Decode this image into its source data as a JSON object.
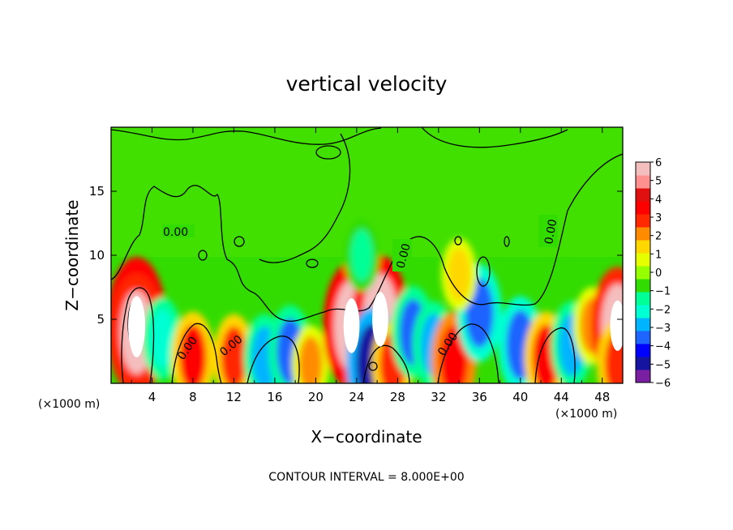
{
  "chart_data": {
    "type": "heatmap",
    "title": "vertical velocity",
    "xlabel": "X−coordinate",
    "ylabel": "Z−coordinate",
    "x_unit_left": "(×1000 m)",
    "x_unit_right": "(×1000 m)",
    "xlim": [
      0,
      50
    ],
    "ylim": [
      0,
      20
    ],
    "x_ticks": [
      4,
      8,
      12,
      16,
      20,
      24,
      28,
      32,
      36,
      40,
      44,
      48
    ],
    "y_ticks": [
      5,
      10,
      15
    ],
    "colorbar": {
      "ticks": [
        "6",
        "5",
        "4",
        "3",
        "2",
        "1",
        "0",
        "−1",
        "−2",
        "−3",
        "−4",
        "−5",
        "−6"
      ],
      "vmin": -6,
      "vmax": 6,
      "colors": [
        "#7b1fa2",
        "#1414a0",
        "#0000ff",
        "#1e64ff",
        "#00b4ff",
        "#00ffd2",
        "#00ff96",
        "#32dc00",
        "#96ff00",
        "#e6ff00",
        "#ffd700",
        "#ff8c00",
        "#ff2800",
        "#ff0000",
        "#e01010",
        "#ff9090",
        "#f5bebe"
      ]
    },
    "contour_labels": [
      "0.00",
      "0.00",
      "0.00",
      "0.00",
      "0.00",
      "0.00"
    ],
    "footer": "CONTOUR INTERVAL = 8.000E+00",
    "features": [
      {
        "x": 2.5,
        "z": 4.5,
        "w": 8.0
      },
      {
        "x": 2.5,
        "z": 4.0,
        "w": 6.0
      },
      {
        "x": 5.0,
        "z": 3.5,
        "w": -2.5
      },
      {
        "x": 8.0,
        "z": 2.0,
        "w": 3.5
      },
      {
        "x": 12.0,
        "z": 2.0,
        "w": 3.0
      },
      {
        "x": 15.0,
        "z": 2.0,
        "w": -3.0
      },
      {
        "x": 17.5,
        "z": 2.5,
        "w": -3.5
      },
      {
        "x": 19.5,
        "z": 1.5,
        "w": 2.0
      },
      {
        "x": 23.5,
        "z": 5.5,
        "w": -4.5
      },
      {
        "x": 23.5,
        "z": 4.5,
        "w": 7.0
      },
      {
        "x": 26.3,
        "z": 5.0,
        "w": 7.0
      },
      {
        "x": 25.5,
        "z": 1.5,
        "w": -5.5
      },
      {
        "x": 27.5,
        "z": 1.5,
        "w": 3.0
      },
      {
        "x": 29.5,
        "z": 4.0,
        "w": -3.5
      },
      {
        "x": 31.5,
        "z": 3.0,
        "w": -3.0
      },
      {
        "x": 33.5,
        "z": 1.8,
        "w": 4.0
      },
      {
        "x": 36.0,
        "z": 5.5,
        "w": -4.0
      },
      {
        "x": 40.0,
        "z": 3.0,
        "w": -4.0
      },
      {
        "x": 42.5,
        "z": 2.0,
        "w": 3.5
      },
      {
        "x": 45.0,
        "z": 3.0,
        "w": -3.0
      },
      {
        "x": 47.0,
        "z": 4.5,
        "w": 2.0
      },
      {
        "x": 49.5,
        "z": 4.5,
        "w": 6.0
      },
      {
        "x": 49.5,
        "z": 1.5,
        "w": 3.0
      },
      {
        "x": 34.0,
        "z": 8.5,
        "w": 1.5
      },
      {
        "x": 24.5,
        "z": 10.0,
        "w": -1.5
      }
    ]
  }
}
